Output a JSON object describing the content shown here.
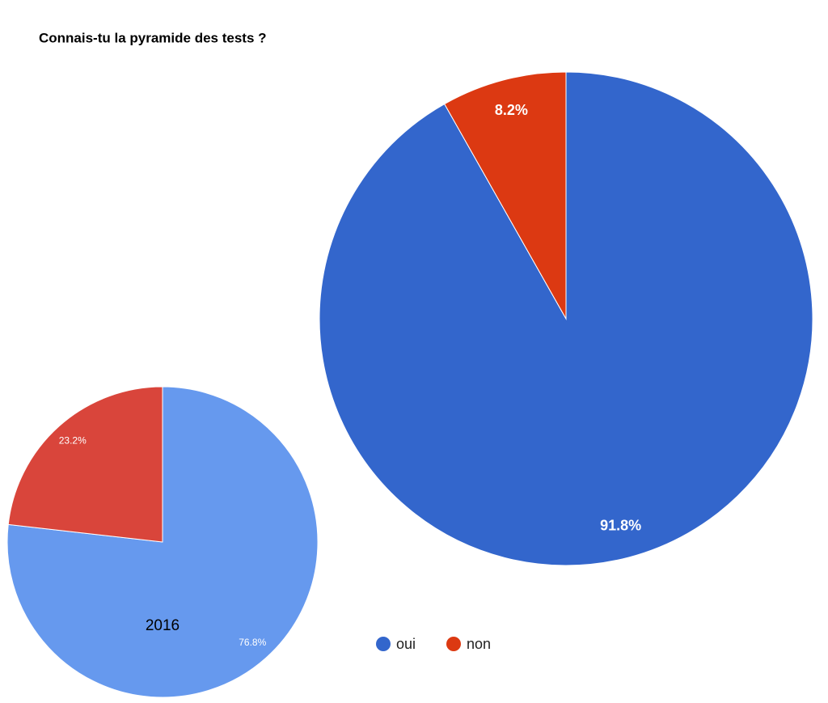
{
  "chart_data": [
    {
      "type": "pie",
      "title": "Connais-tu la pyramide des tests ?",
      "categories": [
        "oui",
        "non"
      ],
      "values": [
        91.8,
        8.2
      ],
      "value_labels": [
        "91.8%",
        "8.2%"
      ],
      "colors": [
        "#3366cc",
        "#dc3912"
      ],
      "legend": "bottom"
    },
    {
      "type": "pie",
      "annotation": "2016",
      "values": [
        76.8,
        23.2
      ],
      "value_labels": [
        "76.8%",
        "23.2%"
      ],
      "colors": [
        "#6699ee",
        "#d9453b"
      ]
    }
  ]
}
